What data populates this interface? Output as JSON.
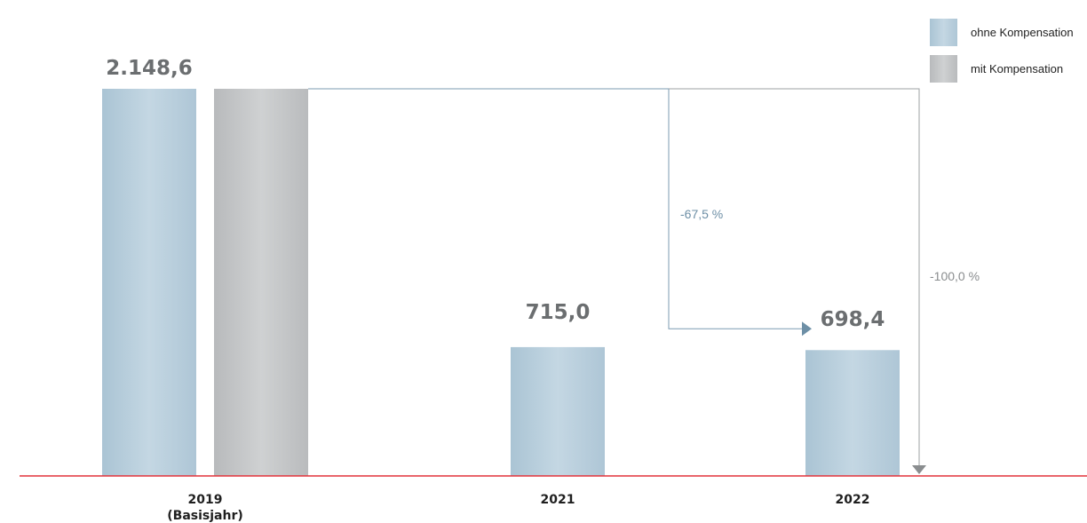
{
  "chart_data": {
    "type": "bar",
    "categories": [
      "2019 (Basisjahr)",
      "2021",
      "2022"
    ],
    "category_labels": [
      [
        "2019",
        "(Basisjahr)"
      ],
      [
        "2021"
      ],
      [
        "2022"
      ]
    ],
    "series": [
      {
        "name": "ohne Kompensation",
        "values": [
          2148.6,
          715.0,
          698.4
        ],
        "color": "#b9cfdc"
      },
      {
        "name": "mit Kompensation",
        "values": [
          2148.6,
          null,
          null
        ],
        "color": "#c2c4c6"
      }
    ],
    "data_labels": [
      "2.148,6",
      "715,0",
      "698,4"
    ],
    "annotations": [
      {
        "text": "-67,5 %",
        "color": "#6d8fa6"
      },
      {
        "text": "-100,0 %",
        "color": "#8a8d8f"
      }
    ],
    "ylim": [
      0,
      2148.6
    ],
    "legend_position": "top-right",
    "baseline_color": "#e2323a"
  }
}
